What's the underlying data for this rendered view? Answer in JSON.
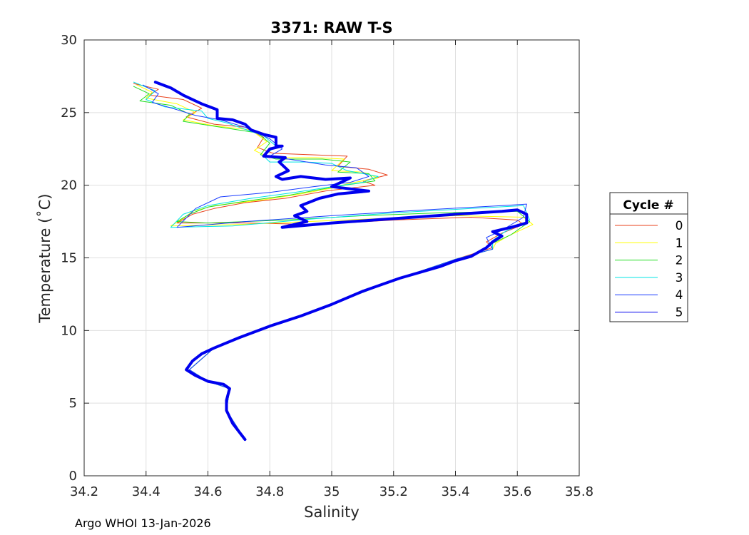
{
  "footer_text": "Argo WHOI 13-Jan-2026",
  "chart_data": {
    "type": "line",
    "title": "3371: RAW T-S",
    "xlabel": "Salinity",
    "ylabel": "Temperature (˚C)",
    "xlim": [
      34.2,
      35.8
    ],
    "ylim": [
      0,
      30
    ],
    "xticks": [
      "34.2",
      "34.4",
      "34.6",
      "34.8",
      "35",
      "35.2",
      "35.4",
      "35.6",
      "35.8"
    ],
    "yticks": [
      "0",
      "5",
      "10",
      "15",
      "20",
      "25",
      "30"
    ],
    "grid": true,
    "legend": {
      "title": "Cycle #",
      "placement": "outside-right"
    },
    "series": [
      {
        "name": "0",
        "color": "#e8411b",
        "points": [
          [
            34.36,
            27.0
          ],
          [
            34.44,
            26.6
          ],
          [
            34.41,
            26.2
          ],
          [
            34.52,
            25.9
          ],
          [
            34.58,
            25.3
          ],
          [
            34.53,
            24.7
          ],
          [
            34.62,
            24.2
          ],
          [
            34.72,
            24.0
          ],
          [
            34.78,
            23.3
          ],
          [
            34.76,
            22.6
          ],
          [
            34.81,
            22.2
          ],
          [
            34.93,
            22.1
          ],
          [
            35.05,
            22.0
          ],
          [
            35.02,
            21.3
          ],
          [
            35.12,
            21.1
          ],
          [
            35.18,
            20.7
          ],
          [
            35.1,
            20.3
          ],
          [
            35.14,
            20.0
          ],
          [
            34.98,
            19.6
          ],
          [
            34.85,
            19.1
          ],
          [
            34.72,
            18.8
          ],
          [
            34.62,
            18.4
          ],
          [
            34.55,
            18.0
          ],
          [
            34.5,
            17.4
          ],
          [
            34.72,
            17.4
          ],
          [
            34.95,
            17.3
          ],
          [
            35.2,
            17.6
          ],
          [
            35.45,
            17.8
          ],
          [
            35.6,
            17.6
          ],
          [
            35.62,
            17.3
          ],
          [
            35.55,
            16.7
          ],
          [
            35.5,
            16.1
          ],
          [
            35.52,
            15.7
          ],
          [
            35.4,
            14.9
          ],
          [
            35.22,
            13.6
          ],
          [
            35.0,
            11.8
          ],
          [
            34.8,
            10.3
          ],
          [
            34.62,
            8.8
          ],
          [
            34.54,
            7.3
          ],
          [
            34.6,
            6.5
          ],
          [
            34.67,
            6.0
          ],
          [
            34.66,
            4.5
          ],
          [
            34.72,
            2.5
          ]
        ]
      },
      {
        "name": "1",
        "color": "#ffff00",
        "points": [
          [
            34.37,
            26.9
          ],
          [
            34.42,
            26.4
          ],
          [
            34.4,
            26.0
          ],
          [
            34.5,
            25.6
          ],
          [
            34.56,
            25.0
          ],
          [
            34.52,
            24.5
          ],
          [
            34.62,
            24.1
          ],
          [
            34.74,
            23.8
          ],
          [
            34.79,
            23.0
          ],
          [
            34.75,
            22.4
          ],
          [
            34.8,
            21.9
          ],
          [
            34.95,
            21.9
          ],
          [
            35.04,
            21.8
          ],
          [
            35.0,
            21.0
          ],
          [
            35.1,
            20.9
          ],
          [
            35.15,
            20.5
          ],
          [
            35.05,
            20.1
          ],
          [
            35.0,
            19.8
          ],
          [
            34.9,
            19.4
          ],
          [
            34.78,
            19.0
          ],
          [
            34.62,
            18.6
          ],
          [
            34.55,
            18.2
          ],
          [
            34.52,
            17.7
          ],
          [
            34.48,
            17.2
          ],
          [
            34.7,
            17.3
          ],
          [
            34.92,
            17.5
          ],
          [
            35.15,
            17.7
          ],
          [
            35.4,
            17.9
          ],
          [
            35.62,
            17.8
          ],
          [
            35.65,
            17.3
          ],
          [
            35.57,
            16.5
          ],
          [
            35.53,
            16.0
          ],
          [
            35.52,
            15.6
          ],
          [
            35.4,
            14.9
          ],
          [
            35.22,
            13.6
          ],
          [
            35.0,
            11.8
          ],
          [
            34.8,
            10.3
          ],
          [
            34.62,
            8.8
          ],
          [
            34.54,
            7.3
          ],
          [
            34.6,
            6.5
          ],
          [
            34.67,
            6.0
          ],
          [
            34.66,
            4.5
          ],
          [
            34.72,
            2.5
          ]
        ]
      },
      {
        "name": "2",
        "color": "#22dd22",
        "points": [
          [
            34.36,
            26.8
          ],
          [
            34.41,
            26.3
          ],
          [
            34.38,
            25.8
          ],
          [
            34.48,
            25.5
          ],
          [
            34.54,
            24.9
          ],
          [
            34.52,
            24.4
          ],
          [
            34.64,
            24.0
          ],
          [
            34.76,
            23.6
          ],
          [
            34.8,
            22.9
          ],
          [
            34.77,
            22.1
          ],
          [
            34.82,
            21.8
          ],
          [
            34.97,
            21.8
          ],
          [
            35.06,
            21.6
          ],
          [
            35.02,
            20.9
          ],
          [
            35.12,
            20.8
          ],
          [
            35.14,
            20.3
          ],
          [
            35.04,
            20.0
          ],
          [
            34.96,
            19.7
          ],
          [
            34.86,
            19.3
          ],
          [
            34.72,
            18.9
          ],
          [
            34.6,
            18.5
          ],
          [
            34.54,
            18.0
          ],
          [
            34.5,
            17.5
          ],
          [
            34.6,
            17.4
          ],
          [
            34.85,
            17.6
          ],
          [
            35.1,
            17.9
          ],
          [
            35.35,
            18.1
          ],
          [
            35.6,
            18.2
          ],
          [
            35.64,
            17.5
          ],
          [
            35.58,
            16.6
          ],
          [
            35.52,
            16.0
          ],
          [
            35.52,
            15.6
          ],
          [
            35.4,
            14.9
          ],
          [
            35.22,
            13.6
          ],
          [
            35.0,
            11.8
          ],
          [
            34.8,
            10.3
          ],
          [
            34.62,
            8.8
          ],
          [
            34.54,
            7.3
          ],
          [
            34.6,
            6.5
          ],
          [
            34.67,
            6.0
          ],
          [
            34.66,
            4.5
          ],
          [
            34.72,
            2.5
          ]
        ]
      },
      {
        "name": "3",
        "color": "#00e5e5",
        "points": [
          [
            34.36,
            27.1
          ],
          [
            34.43,
            26.5
          ],
          [
            34.4,
            25.9
          ],
          [
            34.46,
            25.4
          ],
          [
            34.58,
            25.1
          ],
          [
            34.6,
            24.6
          ],
          [
            34.66,
            24.3
          ],
          [
            34.78,
            23.4
          ],
          [
            34.82,
            22.7
          ],
          [
            34.78,
            22.0
          ],
          [
            34.8,
            21.6
          ],
          [
            34.92,
            21.6
          ],
          [
            35.0,
            21.5
          ],
          [
            35.05,
            21.0
          ],
          [
            35.15,
            20.6
          ],
          [
            35.1,
            20.2
          ],
          [
            35.0,
            19.9
          ],
          [
            34.88,
            19.5
          ],
          [
            34.74,
            19.1
          ],
          [
            34.6,
            18.6
          ],
          [
            34.52,
            18.0
          ],
          [
            34.48,
            17.1
          ],
          [
            34.68,
            17.2
          ],
          [
            34.95,
            17.7
          ],
          [
            35.2,
            18.1
          ],
          [
            35.45,
            18.4
          ],
          [
            35.62,
            18.6
          ],
          [
            35.64,
            17.6
          ],
          [
            35.56,
            16.8
          ],
          [
            35.52,
            16.2
          ],
          [
            35.52,
            15.6
          ],
          [
            35.4,
            14.9
          ],
          [
            35.22,
            13.6
          ],
          [
            35.0,
            11.8
          ],
          [
            34.8,
            10.3
          ],
          [
            34.62,
            8.8
          ],
          [
            34.54,
            7.3
          ],
          [
            34.6,
            6.5
          ],
          [
            34.67,
            6.0
          ],
          [
            34.66,
            4.5
          ],
          [
            34.72,
            2.5
          ]
        ]
      },
      {
        "name": "4",
        "color": "#1a3dff",
        "points": [
          [
            34.39,
            26.9
          ],
          [
            34.44,
            26.3
          ],
          [
            34.42,
            25.7
          ],
          [
            34.5,
            25.2
          ],
          [
            34.56,
            24.8
          ],
          [
            34.64,
            24.5
          ],
          [
            34.72,
            24.0
          ],
          [
            34.8,
            23.2
          ],
          [
            34.84,
            22.5
          ],
          [
            34.8,
            22.0
          ],
          [
            34.86,
            21.8
          ],
          [
            34.98,
            21.4
          ],
          [
            35.08,
            21.2
          ],
          [
            35.12,
            20.6
          ],
          [
            35.06,
            20.2
          ],
          [
            34.94,
            19.9
          ],
          [
            34.8,
            19.5
          ],
          [
            34.64,
            19.2
          ],
          [
            34.56,
            18.4
          ],
          [
            34.5,
            17.1
          ],
          [
            34.72,
            17.5
          ],
          [
            35.0,
            17.9
          ],
          [
            35.3,
            18.3
          ],
          [
            35.55,
            18.6
          ],
          [
            35.63,
            18.7
          ],
          [
            35.62,
            17.8
          ],
          [
            35.55,
            16.9
          ],
          [
            35.5,
            16.4
          ],
          [
            35.52,
            15.6
          ],
          [
            35.4,
            14.9
          ],
          [
            35.22,
            13.6
          ],
          [
            35.0,
            11.8
          ],
          [
            34.8,
            10.3
          ],
          [
            34.62,
            8.8
          ],
          [
            34.54,
            7.3
          ],
          [
            34.6,
            6.5
          ],
          [
            34.67,
            6.0
          ],
          [
            34.66,
            4.5
          ],
          [
            34.72,
            2.5
          ]
        ]
      },
      {
        "name": "5",
        "color": "#0000ee",
        "points": [
          [
            34.43,
            27.1
          ],
          [
            34.48,
            26.7
          ],
          [
            34.52,
            26.2
          ],
          [
            34.58,
            25.6
          ],
          [
            34.63,
            25.2
          ],
          [
            34.63,
            24.6
          ],
          [
            34.68,
            24.5
          ],
          [
            34.72,
            24.2
          ],
          [
            34.74,
            23.8
          ],
          [
            34.78,
            23.5
          ],
          [
            34.82,
            23.3
          ],
          [
            34.82,
            22.7
          ],
          [
            34.84,
            22.7
          ],
          [
            34.8,
            22.5
          ],
          [
            34.78,
            22.0
          ],
          [
            34.85,
            21.9
          ],
          [
            34.83,
            21.6
          ],
          [
            34.86,
            21.0
          ],
          [
            34.82,
            20.6
          ],
          [
            34.84,
            20.4
          ],
          [
            34.9,
            20.6
          ],
          [
            34.98,
            20.4
          ],
          [
            35.06,
            20.5
          ],
          [
            35.03,
            20.2
          ],
          [
            35.0,
            19.9
          ],
          [
            35.12,
            19.6
          ],
          [
            35.02,
            19.4
          ],
          [
            34.96,
            19.1
          ],
          [
            34.9,
            18.6
          ],
          [
            34.92,
            18.2
          ],
          [
            34.88,
            17.9
          ],
          [
            34.92,
            17.5
          ],
          [
            34.84,
            17.1
          ],
          [
            35.0,
            17.4
          ],
          [
            35.2,
            17.7
          ],
          [
            35.4,
            18.0
          ],
          [
            35.55,
            18.2
          ],
          [
            35.6,
            18.3
          ],
          [
            35.63,
            18.0
          ],
          [
            35.63,
            17.4
          ],
          [
            35.58,
            17.1
          ],
          [
            35.52,
            16.8
          ],
          [
            35.55,
            16.5
          ],
          [
            35.52,
            16.1
          ],
          [
            35.5,
            15.7
          ],
          [
            35.45,
            15.1
          ],
          [
            35.4,
            14.8
          ],
          [
            35.35,
            14.4
          ],
          [
            35.22,
            13.6
          ],
          [
            35.1,
            12.7
          ],
          [
            35.0,
            11.8
          ],
          [
            34.9,
            11.0
          ],
          [
            34.8,
            10.3
          ],
          [
            34.7,
            9.5
          ],
          [
            34.62,
            8.8
          ],
          [
            34.58,
            8.4
          ],
          [
            34.55,
            7.9
          ],
          [
            34.53,
            7.3
          ],
          [
            34.56,
            6.9
          ],
          [
            34.6,
            6.5
          ],
          [
            34.65,
            6.3
          ],
          [
            34.67,
            6.0
          ],
          [
            34.66,
            5.2
          ],
          [
            34.66,
            4.5
          ],
          [
            34.68,
            3.6
          ],
          [
            34.72,
            2.5
          ]
        ]
      }
    ]
  }
}
